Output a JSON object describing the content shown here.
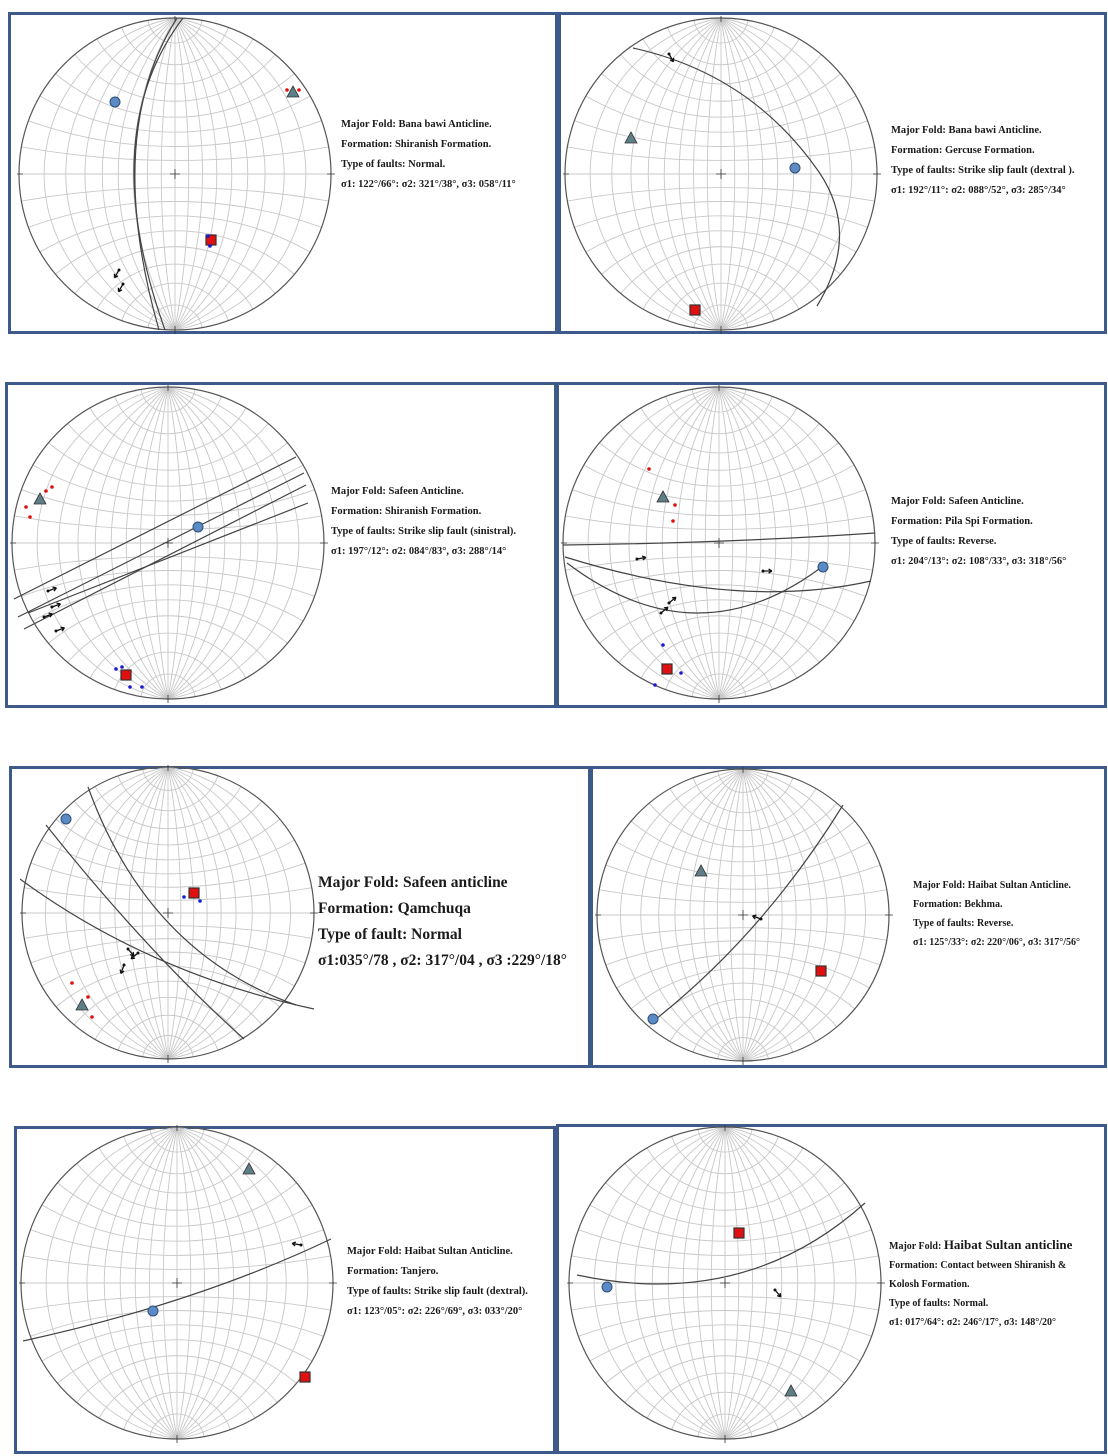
{
  "panels": [
    {
      "fold": "Major Fold: Bana bawi Anticline.",
      "formation": "Formation: Shiranish Formation.",
      "faults": "Type of faults: Normal.",
      "stress": "σ1: 122°/66°: σ2: 321°/38°, σ3: 058°/11°"
    },
    {
      "fold": "Major Fold: Bana bawi Anticline.",
      "formation": "Formation: Gercuse Formation.",
      "faults": "Type of faults: Strike slip fault (dextral ).",
      "stress": "σ1: 192°/11°: σ2: 088°/52°, σ3: 285°/34°"
    },
    {
      "fold": "Major Fold: Safeen Anticline.",
      "formation": "Formation: Shiranish Formation.",
      "faults": "Type of faults: Strike slip fault (sinistral).",
      "stress": "σ1: 197°/12°: σ2: 084°/83°, σ3: 288°/14°"
    },
    {
      "fold": "Major Fold: Safeen Anticline.",
      "formation": "Formation: Pila Spi Formation.",
      "faults": "Type of faults: Reverse.",
      "stress": "σ1: 204°/13°: σ2: 108°/33°, σ3: 318°/56°"
    },
    {
      "fold": "Major Fold: Safeen anticline",
      "formation": "Formation: Qamchuqa",
      "faults": "Type of fault: Normal",
      "stress": "σ1:035°/78 , σ2: 317°/04 , σ3 :229°/18°"
    },
    {
      "fold": "Major Fold: Haibat Sultan Anticline.",
      "formation": "Formation: Bekhma.",
      "faults": "Type of faults: Reverse.",
      "stress": "σ1: 125°/33°: σ2: 220°/06°, σ3: 317°/56°"
    },
    {
      "fold": "Major Fold: Haibat Sultan Anticline.",
      "formation": "Formation: Tanjero.",
      "faults": "Type of faults: Strike slip fault (dextral).",
      "stress": "σ1: 123°/05°: σ2: 226°/69°, σ3: 033°/20°"
    },
    {
      "fold_prefix": "Major Fold: ",
      "fold_name": "Haibat Sultan anticline",
      "formation": "Formation: Contact between Shiranish &",
      "formation2": "Kolosh Formation.",
      "faults": "Type of faults: Normal.",
      "stress": "σ1: 017°/64°: σ2: 246°/17°, σ3: 148°/20°"
    }
  ],
  "colors": {
    "frame": "#3d5a8a",
    "grid": "#c8c8c8",
    "circle": "#555555",
    "plane": "#444444",
    "sigma1": "#e01010",
    "sigma2": "#5b8bc4",
    "sigma3": "#5e7f88",
    "red_dot": "#e01010",
    "blue_dot": "#1a1ad0"
  },
  "icons": [
    "stereonet",
    "sigma1-square",
    "sigma2-circle",
    "sigma3-triangle",
    "slip-arrow"
  ]
}
